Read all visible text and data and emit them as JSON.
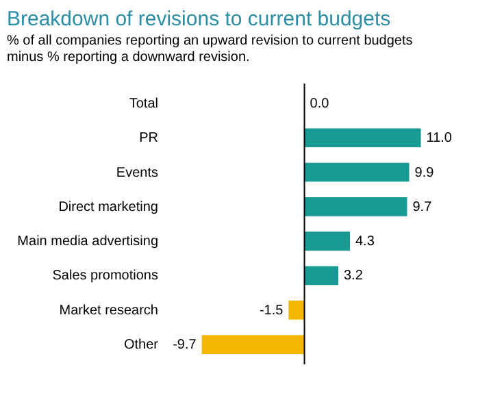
{
  "chart_data": {
    "type": "bar",
    "orientation": "horizontal",
    "title": "Breakdown of revisions to current budgets",
    "subtitle": "% of all companies reporting an upward revision to current budgets minus % reporting a downward revision.",
    "categories": [
      "Total",
      "PR",
      "Events",
      "Direct marketing",
      "Main media advertising",
      "Sales promotions",
      "Market research",
      "Other"
    ],
    "values": [
      0.0,
      11.0,
      9.9,
      9.7,
      4.3,
      3.2,
      -1.5,
      -9.7
    ],
    "colors": [
      "#1a9a94",
      "#1a9a94",
      "#1a9a94",
      "#1a9a94",
      "#1a9a94",
      "#1a9a94",
      "#f5b700",
      "#f5b700"
    ],
    "value_labels": [
      "0.0",
      "11.0",
      "9.9",
      "9.7",
      "4.3",
      "3.2",
      "-1.5",
      "-9.7"
    ],
    "grid": false
  }
}
